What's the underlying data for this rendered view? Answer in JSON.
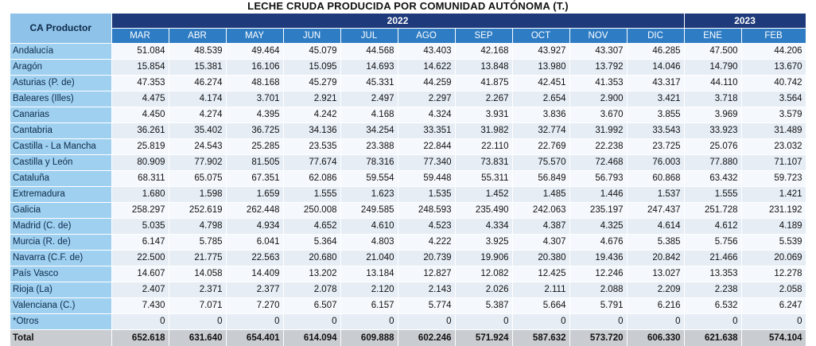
{
  "title": "LECHE CRUDA PRODUCIDA POR COMUNIDAD AUTÓNOMA (T.)",
  "header": {
    "ca_label": "CA Productor",
    "years": [
      {
        "label": "2022",
        "span": 10
      },
      {
        "label": "2023",
        "span": 2
      }
    ],
    "months": [
      "MAR",
      "ABR",
      "MAY",
      "JUN",
      "JUL",
      "AGO",
      "SEP",
      "OCT",
      "NOV",
      "DIC",
      "ENE",
      "FEB"
    ]
  },
  "rows": [
    {
      "region": "Andalucía",
      "values": [
        "51.084",
        "48.539",
        "49.464",
        "45.079",
        "44.568",
        "43.403",
        "42.168",
        "43.927",
        "43.307",
        "46.285",
        "47.500",
        "44.206"
      ]
    },
    {
      "region": "Aragón",
      "values": [
        "15.854",
        "15.381",
        "16.106",
        "15.095",
        "14.693",
        "14.622",
        "13.848",
        "13.980",
        "13.792",
        "14.046",
        "14.790",
        "13.670"
      ]
    },
    {
      "region": "Asturias (P. de)",
      "values": [
        "47.353",
        "46.274",
        "48.168",
        "45.279",
        "45.331",
        "44.259",
        "41.875",
        "42.451",
        "41.353",
        "43.317",
        "44.110",
        "40.742"
      ]
    },
    {
      "region": "Baleares (Illes)",
      "values": [
        "4.475",
        "4.174",
        "3.701",
        "2.921",
        "2.497",
        "2.297",
        "2.267",
        "2.654",
        "2.900",
        "3.421",
        "3.718",
        "3.564"
      ]
    },
    {
      "region": "Canarias",
      "values": [
        "4.450",
        "4.274",
        "4.395",
        "4.242",
        "4.168",
        "4.324",
        "3.931",
        "3.836",
        "3.670",
        "3.855",
        "3.969",
        "3.579"
      ]
    },
    {
      "region": "Cantabria",
      "values": [
        "36.261",
        "35.402",
        "36.725",
        "34.136",
        "34.254",
        "33.351",
        "31.982",
        "32.774",
        "31.992",
        "33.543",
        "33.923",
        "31.489"
      ]
    },
    {
      "region": "Castilla - La Mancha",
      "values": [
        "25.819",
        "24.543",
        "25.285",
        "23.535",
        "23.388",
        "22.844",
        "22.110",
        "22.769",
        "22.238",
        "23.725",
        "25.076",
        "23.032"
      ]
    },
    {
      "region": "Castilla y León",
      "values": [
        "80.909",
        "77.902",
        "81.505",
        "77.674",
        "78.316",
        "77.340",
        "73.831",
        "75.570",
        "72.468",
        "76.003",
        "77.880",
        "71.107"
      ]
    },
    {
      "region": "Cataluña",
      "values": [
        "68.311",
        "65.075",
        "67.351",
        "62.086",
        "59.554",
        "59.448",
        "55.311",
        "56.849",
        "56.793",
        "60.868",
        "63.432",
        "59.723"
      ]
    },
    {
      "region": "Extremadura",
      "values": [
        "1.680",
        "1.598",
        "1.659",
        "1.555",
        "1.623",
        "1.535",
        "1.452",
        "1.485",
        "1.446",
        "1.537",
        "1.555",
        "1.421"
      ]
    },
    {
      "region": "Galicia",
      "values": [
        "258.297",
        "252.619",
        "262.448",
        "250.008",
        "249.585",
        "248.593",
        "235.490",
        "242.063",
        "235.197",
        "247.437",
        "251.728",
        "231.192"
      ]
    },
    {
      "region": "Madrid (C. de)",
      "values": [
        "5.035",
        "4.798",
        "4.934",
        "4.652",
        "4.610",
        "4.523",
        "4.334",
        "4.387",
        "4.325",
        "4.614",
        "4.612",
        "4.189"
      ]
    },
    {
      "region": "Murcia (R. de)",
      "values": [
        "6.147",
        "5.785",
        "6.041",
        "5.364",
        "4.803",
        "4.222",
        "3.925",
        "4.307",
        "4.676",
        "5.385",
        "5.756",
        "5.539"
      ]
    },
    {
      "region": "Navarra (C.F. de)",
      "values": [
        "22.500",
        "21.775",
        "22.563",
        "20.680",
        "21.040",
        "20.739",
        "19.906",
        "20.380",
        "19.436",
        "20.842",
        "21.466",
        "20.069"
      ]
    },
    {
      "region": "País Vasco",
      "values": [
        "14.607",
        "14.058",
        "14.409",
        "13.202",
        "13.184",
        "12.827",
        "12.082",
        "12.425",
        "12.246",
        "13.027",
        "13.353",
        "12.278"
      ]
    },
    {
      "region": "Rioja (La)",
      "values": [
        "2.407",
        "2.371",
        "2.377",
        "2.078",
        "2.120",
        "2.143",
        "2.026",
        "2.111",
        "2.088",
        "2.209",
        "2.238",
        "2.058"
      ]
    },
    {
      "region": "Valenciana (C.)",
      "values": [
        "7.430",
        "7.071",
        "7.270",
        "6.507",
        "6.157",
        "5.774",
        "5.387",
        "5.664",
        "5.791",
        "6.216",
        "6.532",
        "6.247"
      ]
    },
    {
      "region": "*Otros",
      "values": [
        "0",
        "0",
        "0",
        "0",
        "0",
        "0",
        "0",
        "0",
        "0",
        "0",
        "0",
        "0"
      ]
    }
  ],
  "total": {
    "label": "Total",
    "values": [
      "652.618",
      "631.640",
      "654.401",
      "614.094",
      "609.888",
      "602.246",
      "571.924",
      "587.632",
      "573.720",
      "606.330",
      "621.638",
      "574.104"
    ]
  }
}
